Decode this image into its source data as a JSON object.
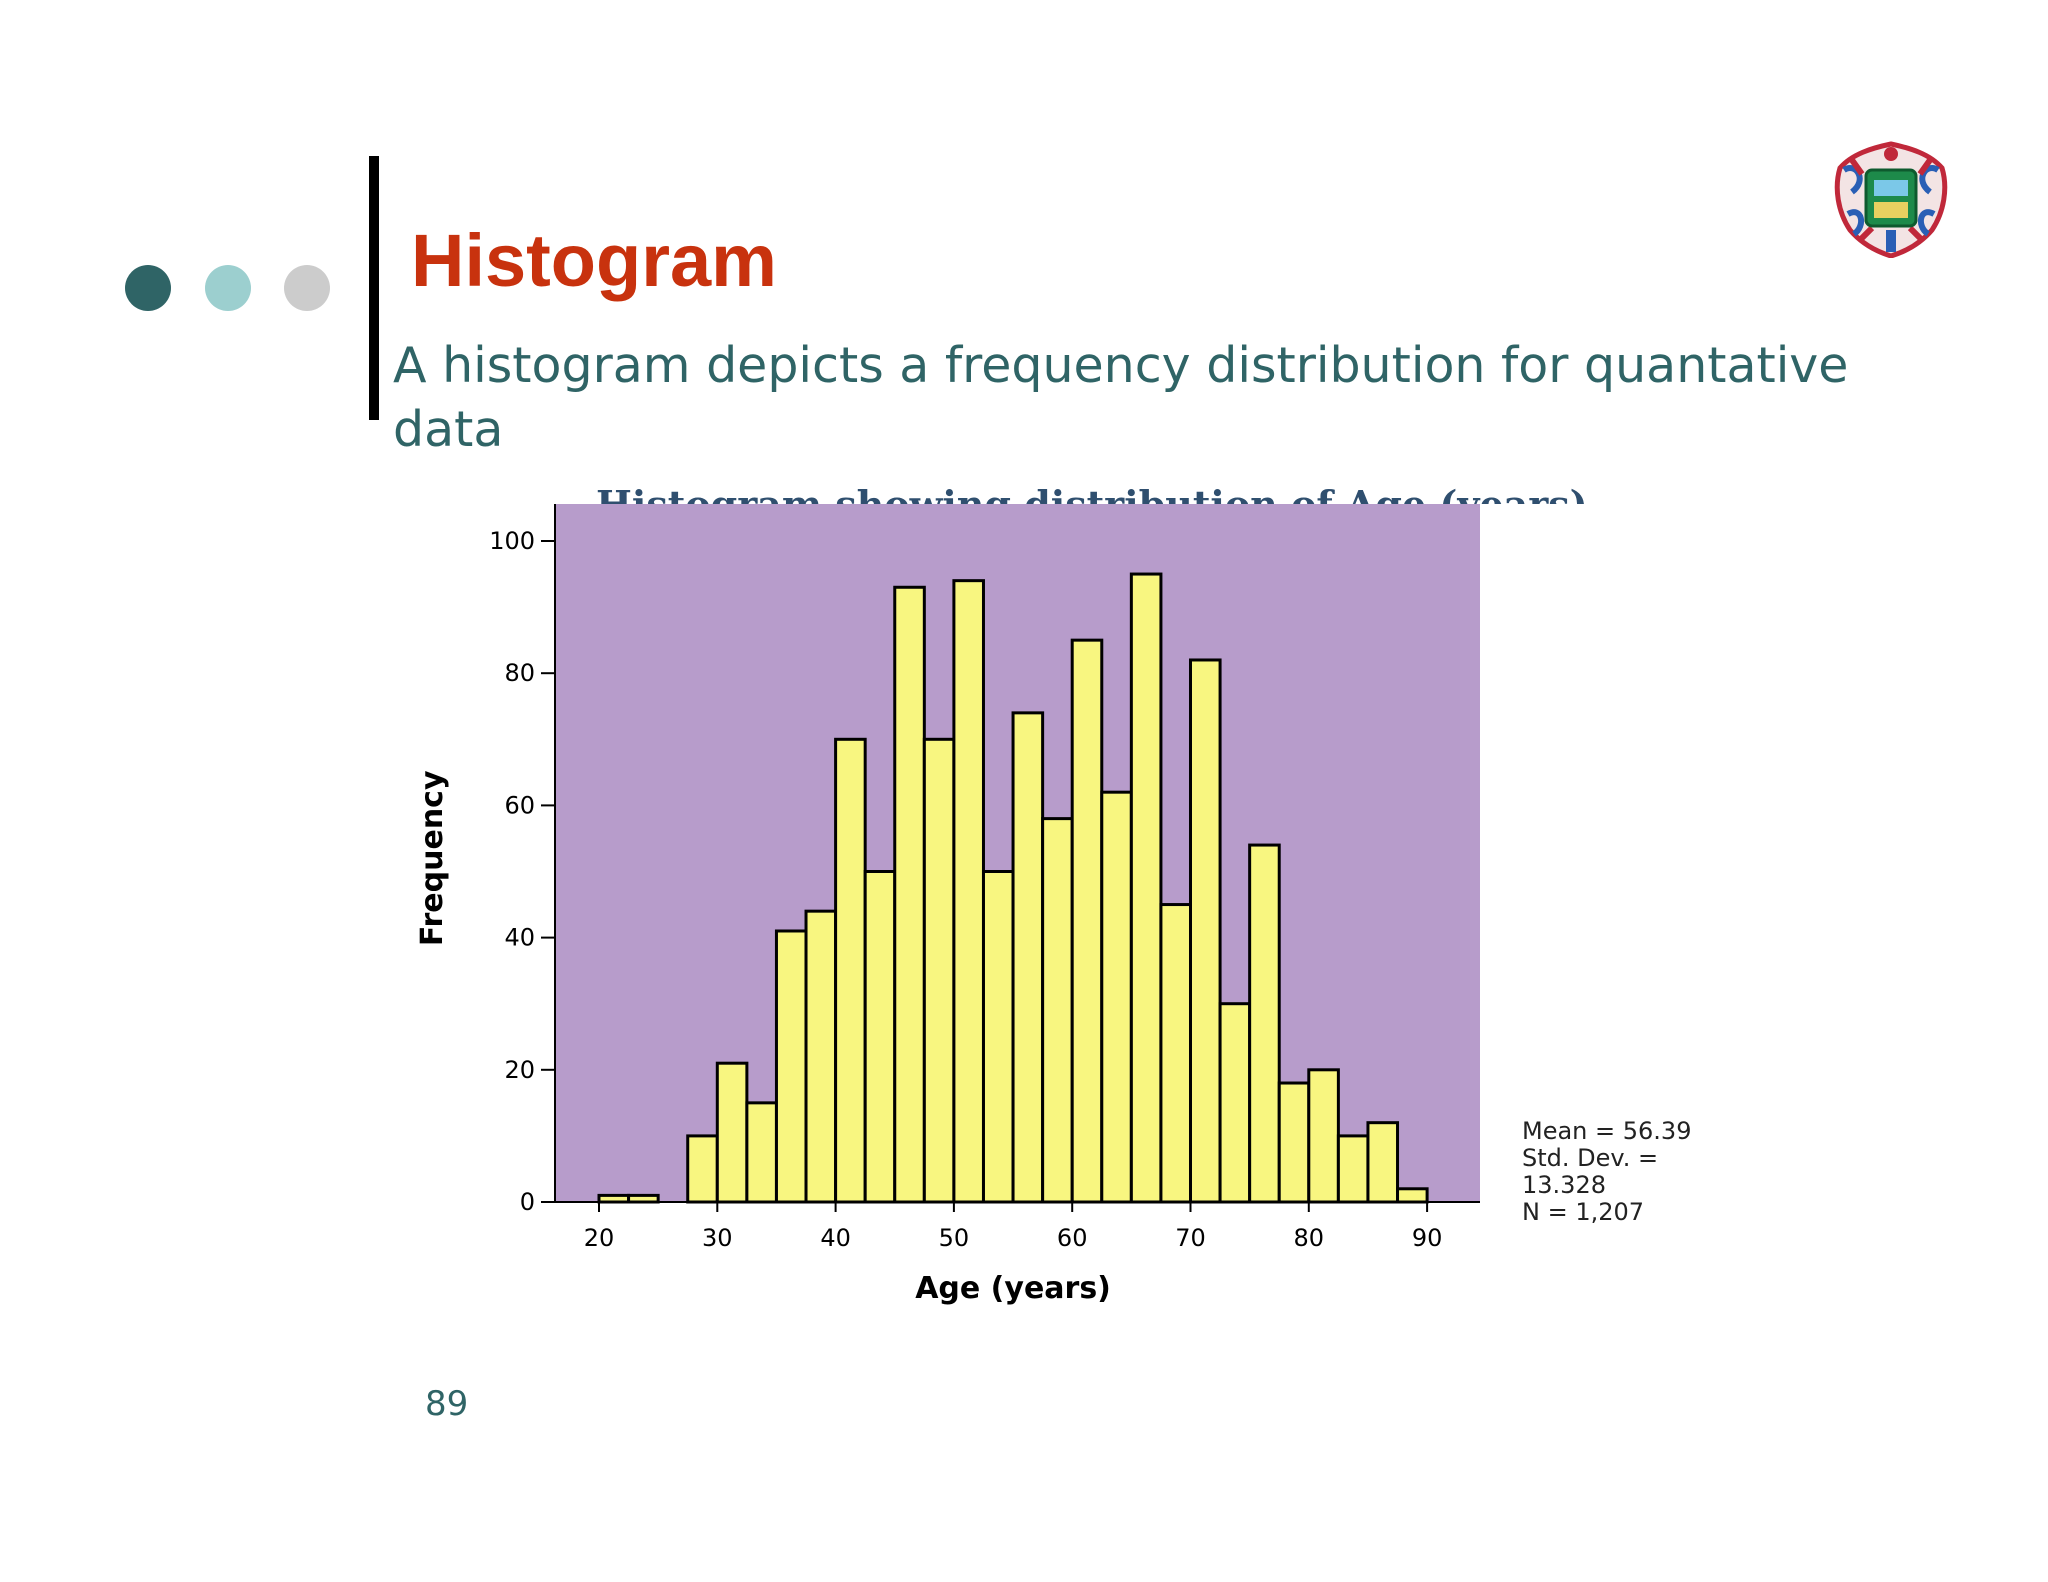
{
  "slide": {
    "title": "Histogram",
    "subtitle": "A histogram depicts a frequency distribution for quantative data",
    "chart_title_partial": "Histogram showing distribution of Age (years)",
    "page_number": "89",
    "dot_colors": [
      "#2f6466",
      "#9ccfcf",
      "#cccccc"
    ],
    "title_color": "#c8320e",
    "text_color": "#2f6466"
  },
  "stats": {
    "mean": "Mean = 56.39",
    "sd_label": "Std. Dev. =",
    "sd_value": "13.328",
    "n": "N = 1,207"
  },
  "chart_data": {
    "type": "bar",
    "histogram": true,
    "bin_width": 2.5,
    "bin_starts": [
      20,
      22.5,
      25,
      27.5,
      30,
      32.5,
      35,
      37.5,
      40,
      42.5,
      45,
      47.5,
      50,
      52.5,
      55,
      57.5,
      60,
      62.5,
      65,
      67.5,
      70,
      72.5,
      75,
      77.5,
      80,
      82.5,
      85,
      87.5
    ],
    "values": [
      1,
      1,
      0,
      10,
      21,
      15,
      41,
      44,
      70,
      50,
      93,
      70,
      94,
      50,
      74,
      58,
      85,
      62,
      95,
      45,
      82,
      30,
      54,
      18,
      20,
      10,
      12,
      2
    ],
    "xlabel": "Age (years)",
    "ylabel": "Frequency",
    "xticks": [
      20,
      30,
      40,
      50,
      60,
      70,
      80,
      90
    ],
    "yticks": [
      0,
      20,
      40,
      60,
      80,
      100
    ],
    "xlim": [
      20,
      90
    ],
    "ylim": [
      0,
      100
    ],
    "plot_background": "#b79ccb",
    "bar_color": "#f8f680",
    "bar_edge_color": "#000000",
    "grid": false
  }
}
